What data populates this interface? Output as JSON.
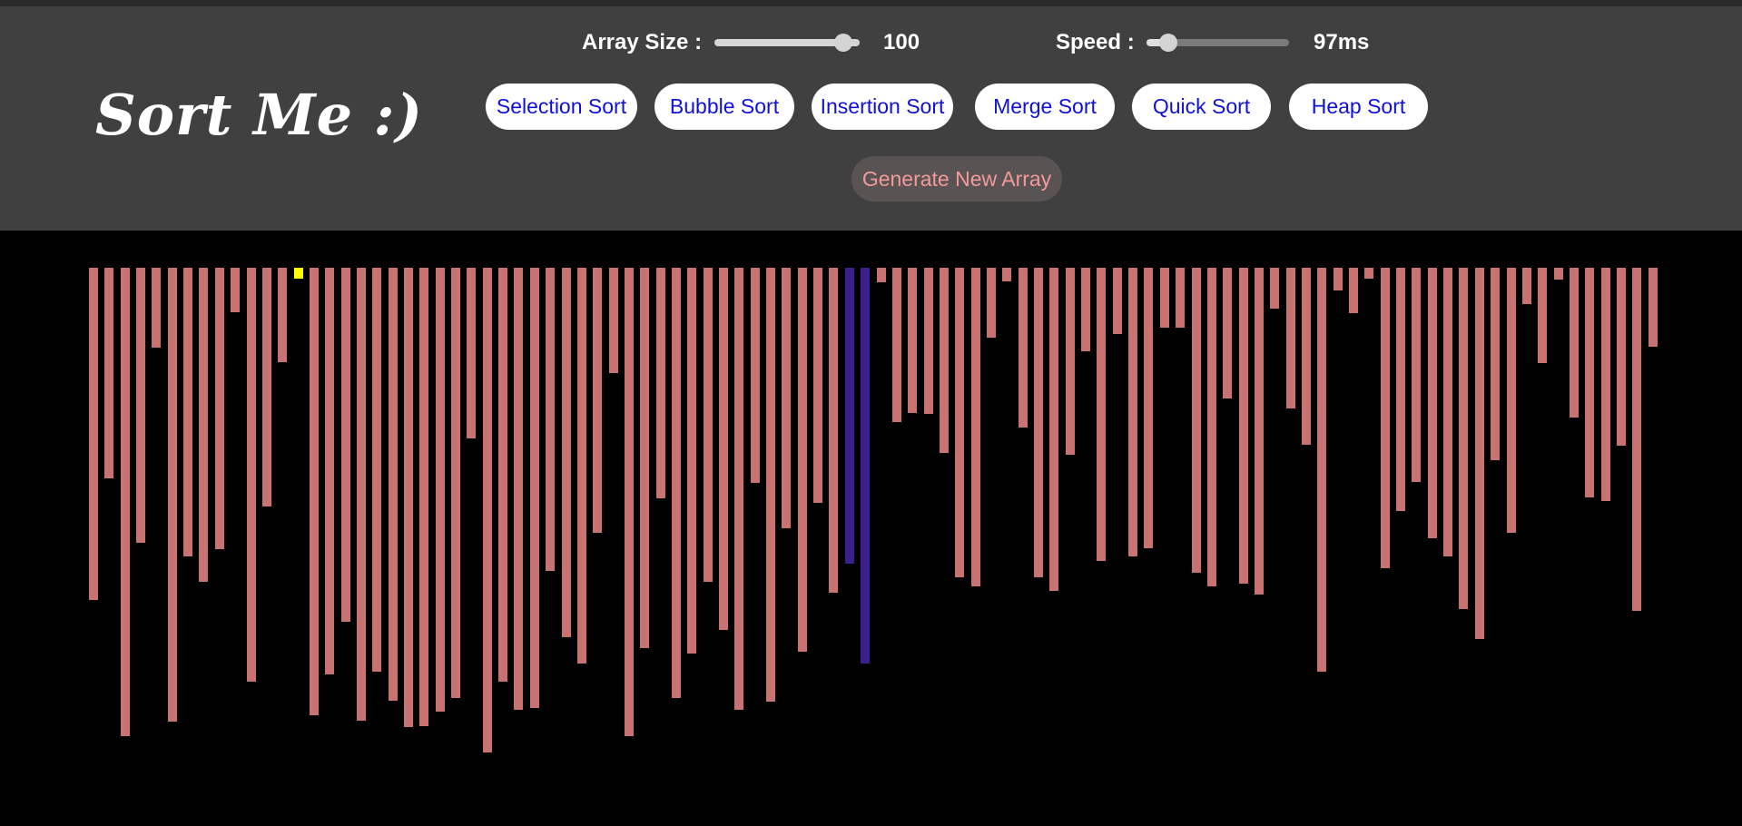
{
  "header": {
    "logo_text": "Sort Me :)",
    "array_size_label": "Array Size :",
    "array_size_value": "100",
    "array_size_fraction": 0.94,
    "speed_label": "Speed :",
    "speed_value": "97ms",
    "speed_fraction": 0.1,
    "algorithms": [
      "Selection Sort",
      "Bubble Sort",
      "Insertion Sort",
      "Merge Sort",
      "Quick Sort",
      "Heap Sort"
    ],
    "generate_label": "Generate New Array"
  },
  "colors": {
    "bar_default": "#c87272",
    "bar_compare": "#3a1f8e",
    "bar_selected": "#ffff00",
    "header_bg": "#404040",
    "button_text": "#1010d8"
  },
  "array": {
    "values": [
      366,
      232,
      516,
      303,
      88,
      500,
      318,
      346,
      310,
      49,
      456,
      263,
      104,
      12,
      493,
      448,
      390,
      499,
      445,
      477,
      506,
      505,
      489,
      474,
      188,
      534,
      456,
      487,
      485,
      334,
      407,
      436,
      292,
      116,
      516,
      419,
      254,
      474,
      425,
      346,
      399,
      487,
      237,
      478,
      287,
      423,
      259,
      358,
      326,
      436,
      16,
      170,
      160,
      161,
      204,
      341,
      351,
      77,
      15,
      176,
      341,
      356,
      206,
      92,
      323,
      73,
      318,
      309,
      66,
      66,
      336,
      351,
      144,
      348,
      360,
      45,
      155,
      195,
      445,
      25,
      50,
      12,
      331,
      268,
      236,
      298,
      318,
      376,
      409,
      212,
      292,
      40,
      105,
      13,
      165,
      253,
      257,
      196,
      378,
      87
    ],
    "bar_states": {
      "48": "compare",
      "49": "compare",
      "13": "selected"
    }
  }
}
